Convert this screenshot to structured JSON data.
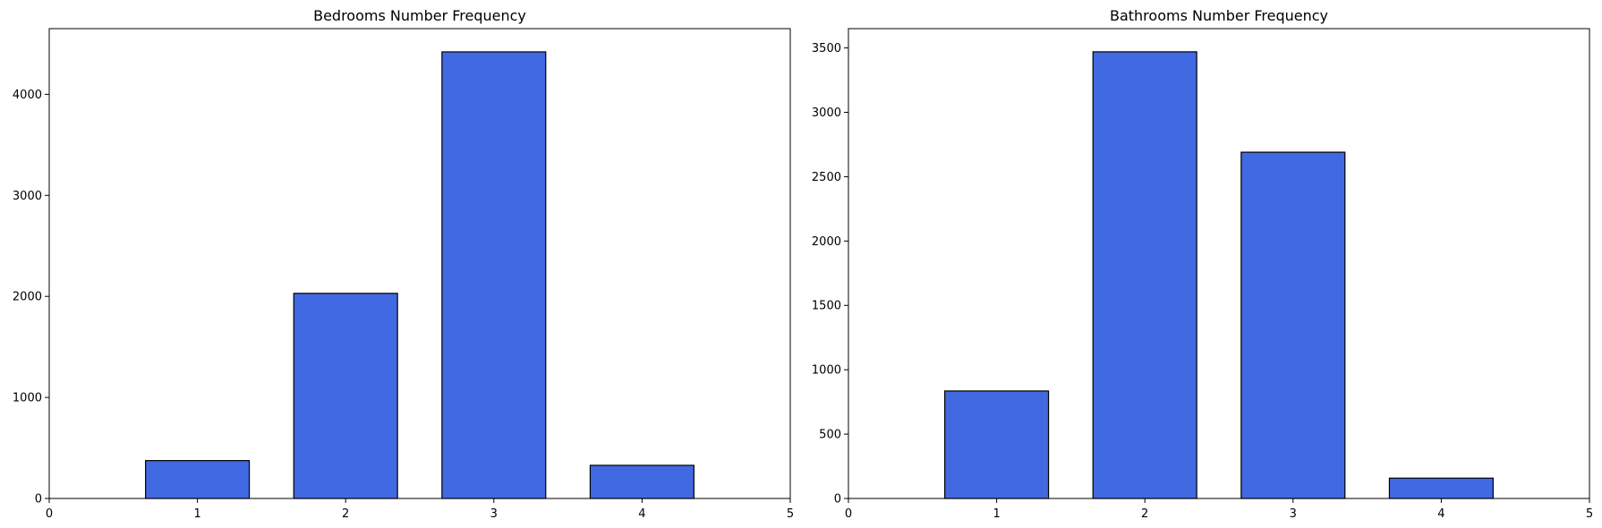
{
  "chart_data": [
    {
      "type": "bar",
      "title": "Bedrooms Number Frequency",
      "xlabel": "",
      "ylabel": "",
      "x": [
        1,
        2,
        3,
        4
      ],
      "values": [
        375,
        2030,
        4420,
        328
      ],
      "xlim": [
        0,
        5
      ],
      "ylim": [
        0,
        4650
      ],
      "xticks": [
        0,
        1,
        2,
        3,
        4,
        5
      ],
      "yticks": [
        0,
        1000,
        2000,
        3000,
        4000
      ],
      "bar_width": 0.7,
      "grid": false,
      "bar_color": "#4169E1",
      "edge_color": "#000000"
    },
    {
      "type": "bar",
      "title": "Bathrooms Number Frequency",
      "xlabel": "",
      "ylabel": "",
      "x": [
        1,
        2,
        3,
        4
      ],
      "values": [
        835,
        3470,
        2690,
        158
      ],
      "xlim": [
        0,
        5
      ],
      "ylim": [
        0,
        3650
      ],
      "xticks": [
        0,
        1,
        2,
        3,
        4,
        5
      ],
      "yticks": [
        0,
        500,
        1000,
        1500,
        2000,
        2500,
        3000,
        3500
      ],
      "bar_width": 0.7,
      "grid": false,
      "bar_color": "#4169E1",
      "edge_color": "#000000"
    }
  ]
}
